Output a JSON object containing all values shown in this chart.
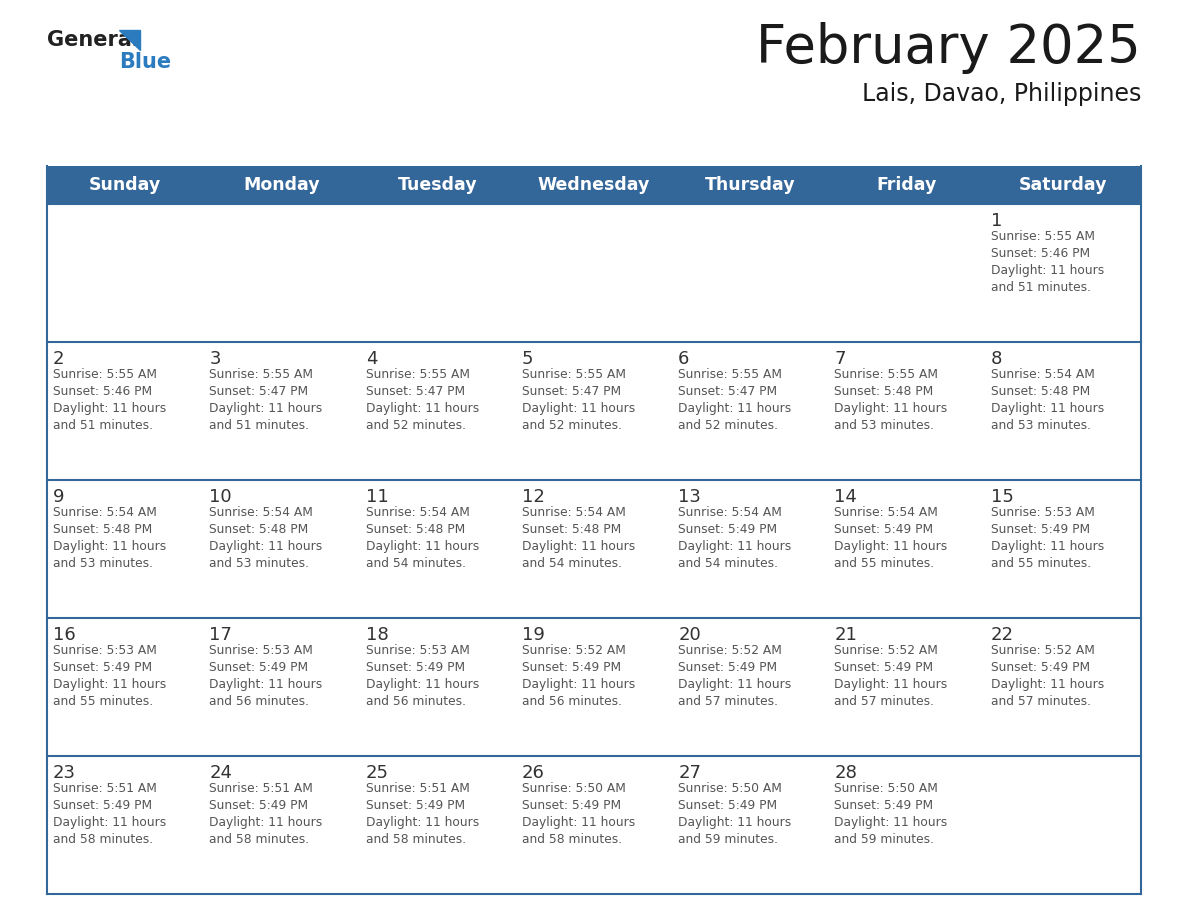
{
  "title": "February 2025",
  "subtitle": "Lais, Davao, Philippines",
  "header_bg": "#336699",
  "header_text": "#ffffff",
  "header_days": [
    "Sunday",
    "Monday",
    "Tuesday",
    "Wednesday",
    "Thursday",
    "Friday",
    "Saturday"
  ],
  "cell_bg": "#ffffff",
  "cell_bg_last": "#f5f5f5",
  "row_line_color": "#336699",
  "day_number_color": "#333333",
  "info_text_color": "#555555",
  "logo_general_color": "#222222",
  "logo_blue_color": "#2b7bbf",
  "background": "#ffffff",
  "calendar": [
    [
      null,
      null,
      null,
      null,
      null,
      null,
      {
        "day": 1,
        "sunrise": "5:55 AM",
        "sunset": "5:46 PM",
        "daylight": "11 hours and 51 minutes."
      }
    ],
    [
      {
        "day": 2,
        "sunrise": "5:55 AM",
        "sunset": "5:46 PM",
        "daylight": "11 hours and 51 minutes."
      },
      {
        "day": 3,
        "sunrise": "5:55 AM",
        "sunset": "5:47 PM",
        "daylight": "11 hours and 51 minutes."
      },
      {
        "day": 4,
        "sunrise": "5:55 AM",
        "sunset": "5:47 PM",
        "daylight": "11 hours and 52 minutes."
      },
      {
        "day": 5,
        "sunrise": "5:55 AM",
        "sunset": "5:47 PM",
        "daylight": "11 hours and 52 minutes."
      },
      {
        "day": 6,
        "sunrise": "5:55 AM",
        "sunset": "5:47 PM",
        "daylight": "11 hours and 52 minutes."
      },
      {
        "day": 7,
        "sunrise": "5:55 AM",
        "sunset": "5:48 PM",
        "daylight": "11 hours and 53 minutes."
      },
      {
        "day": 8,
        "sunrise": "5:54 AM",
        "sunset": "5:48 PM",
        "daylight": "11 hours and 53 minutes."
      }
    ],
    [
      {
        "day": 9,
        "sunrise": "5:54 AM",
        "sunset": "5:48 PM",
        "daylight": "11 hours and 53 minutes."
      },
      {
        "day": 10,
        "sunrise": "5:54 AM",
        "sunset": "5:48 PM",
        "daylight": "11 hours and 53 minutes."
      },
      {
        "day": 11,
        "sunrise": "5:54 AM",
        "sunset": "5:48 PM",
        "daylight": "11 hours and 54 minutes."
      },
      {
        "day": 12,
        "sunrise": "5:54 AM",
        "sunset": "5:48 PM",
        "daylight": "11 hours and 54 minutes."
      },
      {
        "day": 13,
        "sunrise": "5:54 AM",
        "sunset": "5:49 PM",
        "daylight": "11 hours and 54 minutes."
      },
      {
        "day": 14,
        "sunrise": "5:54 AM",
        "sunset": "5:49 PM",
        "daylight": "11 hours and 55 minutes."
      },
      {
        "day": 15,
        "sunrise": "5:53 AM",
        "sunset": "5:49 PM",
        "daylight": "11 hours and 55 minutes."
      }
    ],
    [
      {
        "day": 16,
        "sunrise": "5:53 AM",
        "sunset": "5:49 PM",
        "daylight": "11 hours and 55 minutes."
      },
      {
        "day": 17,
        "sunrise": "5:53 AM",
        "sunset": "5:49 PM",
        "daylight": "11 hours and 56 minutes."
      },
      {
        "day": 18,
        "sunrise": "5:53 AM",
        "sunset": "5:49 PM",
        "daylight": "11 hours and 56 minutes."
      },
      {
        "day": 19,
        "sunrise": "5:52 AM",
        "sunset": "5:49 PM",
        "daylight": "11 hours and 56 minutes."
      },
      {
        "day": 20,
        "sunrise": "5:52 AM",
        "sunset": "5:49 PM",
        "daylight": "11 hours and 57 minutes."
      },
      {
        "day": 21,
        "sunrise": "5:52 AM",
        "sunset": "5:49 PM",
        "daylight": "11 hours and 57 minutes."
      },
      {
        "day": 22,
        "sunrise": "5:52 AM",
        "sunset": "5:49 PM",
        "daylight": "11 hours and 57 minutes."
      }
    ],
    [
      {
        "day": 23,
        "sunrise": "5:51 AM",
        "sunset": "5:49 PM",
        "daylight": "11 hours and 58 minutes."
      },
      {
        "day": 24,
        "sunrise": "5:51 AM",
        "sunset": "5:49 PM",
        "daylight": "11 hours and 58 minutes."
      },
      {
        "day": 25,
        "sunrise": "5:51 AM",
        "sunset": "5:49 PM",
        "daylight": "11 hours and 58 minutes."
      },
      {
        "day": 26,
        "sunrise": "5:50 AM",
        "sunset": "5:49 PM",
        "daylight": "11 hours and 58 minutes."
      },
      {
        "day": 27,
        "sunrise": "5:50 AM",
        "sunset": "5:49 PM",
        "daylight": "11 hours and 59 minutes."
      },
      {
        "day": 28,
        "sunrise": "5:50 AM",
        "sunset": "5:49 PM",
        "daylight": "11 hours and 59 minutes."
      },
      null
    ]
  ]
}
